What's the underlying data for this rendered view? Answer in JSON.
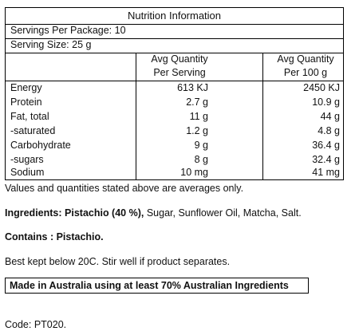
{
  "nutrition": {
    "title": "Nutrition Information",
    "servings_per_package": "Servings Per Package: 10",
    "serving_size": "Serving Size: 25 g",
    "col_serving_line1": "Avg Quantity",
    "col_serving_line2": "Per Serving",
    "col_100g_line1": "Avg Quantity",
    "col_100g_line2": "Per 100 g",
    "rows": [
      {
        "label": "Energy",
        "per_serving": "613 KJ",
        "per_100g": "2450 KJ"
      },
      {
        "label": "Protein",
        "per_serving": "2.7 g",
        "per_100g": "10.9 g"
      },
      {
        "label": "Fat, total",
        "per_serving": "11 g",
        "per_100g": "44 g"
      },
      {
        "label": "-saturated",
        "per_serving": "1.2 g",
        "per_100g": "4.8 g"
      },
      {
        "label": "Carbohydrate",
        "per_serving": "9 g",
        "per_100g": "36.4 g"
      },
      {
        "label": "-sugars",
        "per_serving": "8 g",
        "per_100g": "32.4 g"
      },
      {
        "label": "Sodium",
        "per_serving": "10 mg",
        "per_100g": "41 mg"
      }
    ]
  },
  "notes": {
    "averages": "Values and quantities stated above are averages only.",
    "ingredients_prefix": "Ingredients: ",
    "ingredients_bold": "Pistachio (40 %),",
    "ingredients_rest": " Sugar, Sunflower Oil, Matcha, Salt.",
    "contains": "Contains : Pistachio.",
    "storage": "Best kept below 20C. Stir well if product separates.",
    "origin": "Made in Australia using at least 70% Australian Ingredients",
    "code": "Code: PT020."
  }
}
